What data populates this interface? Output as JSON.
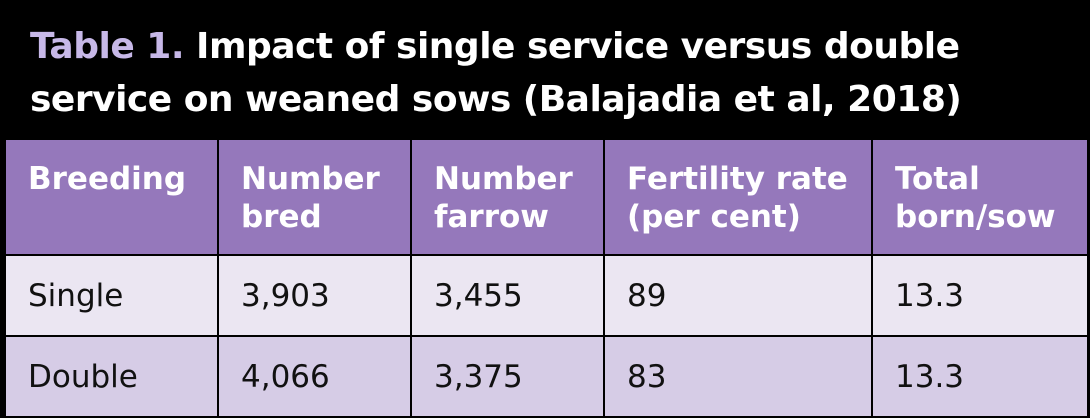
{
  "title": {
    "label": "Table 1.",
    "text": "Impact of single service versus double service on weaned sows (Balajadia et al, 2018)"
  },
  "table": {
    "headers": [
      "Breeding",
      "Number bred",
      "Number farrow",
      "Fertility rate (per cent)",
      "Total born/sow"
    ],
    "rows": [
      [
        "Single",
        "3,903",
        "3,455",
        "89",
        "13.3"
      ],
      [
        "Double",
        "4,066",
        "3,375",
        "83",
        "13.3"
      ]
    ]
  },
  "colors": {
    "background": "#000000",
    "header_bg": "#9578bb",
    "title_label": "#c7b8e8",
    "row_odd": "#ebe6f2",
    "row_even": "#d6cce6"
  }
}
